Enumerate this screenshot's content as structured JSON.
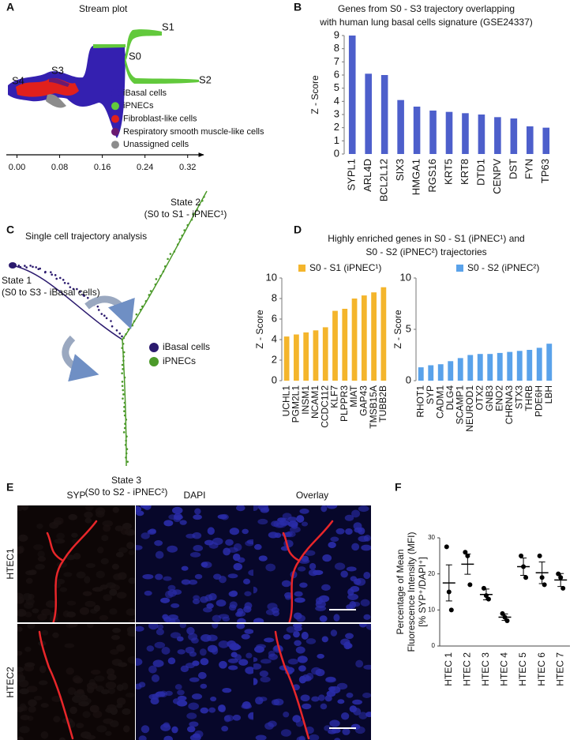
{
  "panel_labels": [
    "A",
    "B",
    "C",
    "D",
    "E",
    "F"
  ],
  "chart_data": [
    {
      "type": "stream",
      "title": "Stream plot",
      "state_labels": [
        "S4",
        "S3",
        "S0",
        "S1",
        "S2"
      ],
      "xlim": [
        -0.02,
        0.35
      ],
      "xticks": [
        {
          "value": 0,
          "label": "0.00"
        },
        {
          "value": 0.08,
          "label": "0.08"
        },
        {
          "value": 0.16,
          "label": "0.16"
        },
        {
          "value": 0.24,
          "label": "0.24"
        },
        {
          "value": 0.32,
          "label": "0.32"
        }
      ],
      "series": [
        {
          "name": "iBasal cells",
          "color": "#3420b0"
        },
        {
          "name": "iPNECs",
          "color": "#62c93c"
        },
        {
          "name": "Fibroblast-like cells",
          "color": "#e0201c"
        },
        {
          "name": "Respiratory smooth muscle-like cells",
          "color": "#6a1a70"
        },
        {
          "name": "Unassigned cells",
          "color": "#8c8c8c"
        }
      ]
    },
    {
      "type": "bar",
      "title": [
        "Genes from S0 - S3 trajectory overlapping",
        "with human lung basal cells signature (GSE24337)"
      ],
      "ylabel": "Z - Score",
      "categories": [
        "SYPL1",
        "ARL4D",
        "BCL2L12",
        "SIX3",
        "HMGA1",
        "RGS16",
        "KRT5",
        "KRT8",
        "DTD1",
        "CENPV",
        "DST",
        "FYN",
        "TP63"
      ],
      "values": [
        9.0,
        6.1,
        6.0,
        4.1,
        3.6,
        3.3,
        3.2,
        3.1,
        3.0,
        2.8,
        2.7,
        2.1,
        2.0
      ],
      "color": "#4d5fcb",
      "ylim": [
        0,
        9
      ],
      "yticks": [
        0,
        1,
        2,
        3,
        4,
        5,
        6,
        7,
        8,
        9
      ]
    },
    {
      "type": "bar",
      "ylabel": "Z - Score",
      "categories": [
        "UCHL1",
        "PGM2L1",
        "INSM1",
        "NCAM1",
        "CCDC112",
        "KLF7",
        "PLPPR3",
        "MIAT",
        "GAP43",
        "TMSB15A",
        "TUBB2B"
      ],
      "series": [
        {
          "name": "S0 - S1 (iPNEC¹)",
          "color": "#f4b52c",
          "values": [
            4.3,
            4.5,
            4.7,
            4.9,
            5.2,
            6.8,
            7.0,
            8.0,
            8.3,
            8.6,
            9.1
          ]
        }
      ],
      "ylim": [
        0,
        10
      ],
      "yticks": [
        0,
        2,
        4,
        6,
        8,
        10
      ]
    },
    {
      "type": "bar",
      "ylabel": "Z - Score",
      "categories": [
        "RHOT1",
        "SYP",
        "CADM1",
        "DLG4",
        "SCAMP1",
        "NEUROD1",
        "OTX2",
        "GNB3",
        "ENO2",
        "CHRNA3",
        "STX3",
        "THRB",
        "PDE6H",
        "LBH"
      ],
      "series": [
        {
          "name": "S0 - S2 (iPNEC²)",
          "color": "#5aa2ea",
          "values": [
            1.3,
            1.5,
            1.6,
            1.9,
            2.2,
            2.5,
            2.6,
            2.6,
            2.7,
            2.8,
            2.9,
            3.0,
            3.2,
            3.6
          ]
        }
      ],
      "ylim": [
        0,
        10
      ],
      "yticks": [
        0,
        5,
        10
      ]
    },
    {
      "type": "dot",
      "ylabel": [
        "Percentage of Mean",
        "Fluorescence Intensity (MFI)",
        "[% SYP⁺/DAPI⁺]"
      ],
      "categories": [
        "HTEC 1",
        "HTEC 2",
        "HTEC 3",
        "HTEC 4",
        "HTEC 5",
        "HTEC 6",
        "HTEC 7"
      ],
      "points": [
        [
          27.5,
          15,
          10
        ],
        [
          26,
          25,
          17
        ],
        [
          16,
          14,
          13
        ],
        [
          9,
          8,
          7
        ],
        [
          25,
          22,
          19
        ],
        [
          25,
          19,
          17
        ],
        [
          20,
          19,
          16
        ]
      ],
      "means": [
        17.5,
        22.7,
        14.3,
        8,
        22,
        20.3,
        18.3
      ],
      "errors": [
        5,
        2.8,
        1.5,
        0.9,
        2.4,
        3,
        1.8
      ],
      "ylim": [
        0,
        30
      ],
      "yticks": [
        0,
        10,
        20,
        30
      ]
    }
  ],
  "trajectory": {
    "title": "Single cell trajectory analysis",
    "states": [
      {
        "label": "State 1",
        "detail": "(S0 to S3 - iBasal cells)"
      },
      {
        "label": "State 2",
        "detail": "(S0 to S1 - iPNEC¹)"
      },
      {
        "label": "State 3",
        "detail": "(S0 to S2 - iPNEC²)"
      }
    ],
    "legend": [
      {
        "name": "iBasal cells",
        "color": "#2b1a6e"
      },
      {
        "name": "iPNECs",
        "color": "#4c9a2a"
      }
    ]
  },
  "enriched_title": [
    "Highly enriched genes in S0 - S1 (iPNEC¹) and",
    "S0 - S2 (iPNEC²) trajectories"
  ],
  "micrographs": {
    "columns": [
      "SYP",
      "DAPI",
      "Overlay"
    ],
    "rows": [
      "HTEC1",
      "HTEC2"
    ]
  }
}
